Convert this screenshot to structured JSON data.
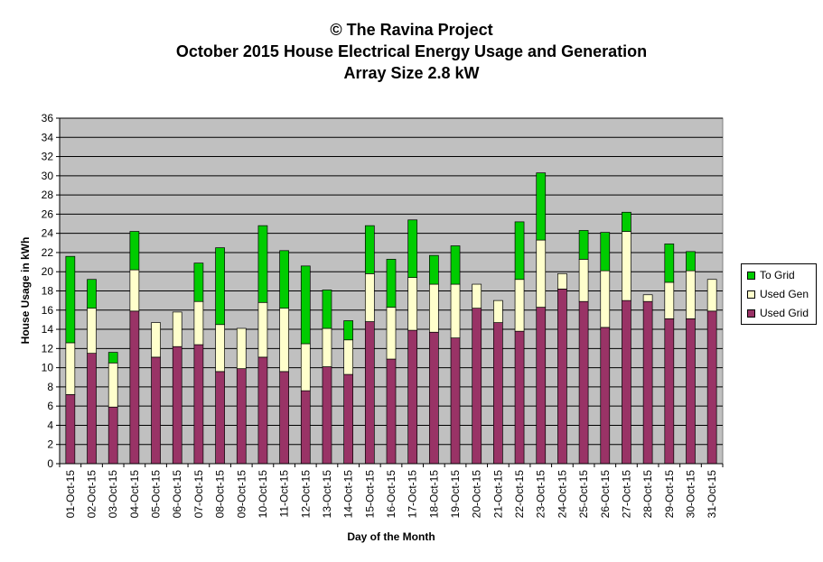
{
  "chart_data": {
    "type": "bar",
    "stacked": true,
    "title": [
      "© The Ravina Project",
      "October 2015 House Electrical Energy Usage and Generation",
      "Array Size 2.8 kW"
    ],
    "xlabel": "Day of the Month",
    "ylabel": "House Usage in kWh",
    "ylim": [
      0,
      36
    ],
    "ytick_step": 2,
    "grid": true,
    "legend_position": "right",
    "categories": [
      "01-Oct-15",
      "02-Oct-15",
      "03-Oct-15",
      "04-Oct-15",
      "05-Oct-15",
      "06-Oct-15",
      "07-Oct-15",
      "08-Oct-15",
      "09-Oct-15",
      "10-Oct-15",
      "11-Oct-15",
      "12-Oct-15",
      "13-Oct-15",
      "14-Oct-15",
      "15-Oct-15",
      "16-Oct-15",
      "17-Oct-15",
      "18-Oct-15",
      "19-Oct-15",
      "20-Oct-15",
      "21-Oct-15",
      "22-Oct-15",
      "23-Oct-15",
      "24-Oct-15",
      "25-Oct-15",
      "26-Oct-15",
      "27-Oct-15",
      "28-Oct-15",
      "29-Oct-15",
      "30-Oct-15",
      "31-Oct-15"
    ],
    "series": [
      {
        "name": "Used Grid",
        "color": "#993366",
        "values": [
          7.2,
          11.5,
          5.9,
          15.9,
          11.1,
          12.2,
          12.4,
          9.6,
          9.9,
          11.1,
          9.6,
          7.6,
          10.1,
          9.3,
          14.8,
          10.9,
          13.9,
          13.7,
          13.1,
          16.2,
          14.7,
          13.8,
          16.3,
          18.2,
          16.9,
          14.2,
          17.0,
          16.9,
          15.1,
          15.1,
          15.9
        ]
      },
      {
        "name": "Used Gen",
        "color": "#ffffcc",
        "values": [
          5.4,
          4.7,
          4.6,
          4.3,
          3.6,
          3.6,
          4.5,
          4.9,
          4.2,
          5.7,
          6.6,
          4.9,
          4.0,
          3.6,
          5.0,
          5.4,
          5.5,
          5.0,
          5.6,
          2.5,
          2.3,
          5.4,
          7.0,
          1.6,
          4.4,
          5.9,
          7.2,
          0.7,
          3.8,
          5.0,
          3.3
        ]
      },
      {
        "name": "To Grid",
        "color": "#00cc00",
        "values": [
          9.0,
          3.0,
          1.1,
          4.0,
          0.0,
          0.0,
          4.0,
          8.0,
          0.0,
          8.0,
          6.0,
          8.1,
          4.0,
          2.0,
          5.0,
          5.0,
          6.0,
          3.0,
          4.0,
          0.0,
          0.0,
          6.0,
          7.0,
          0.0,
          3.0,
          4.0,
          2.0,
          0.0,
          4.0,
          2.0,
          0.0
        ]
      }
    ]
  }
}
